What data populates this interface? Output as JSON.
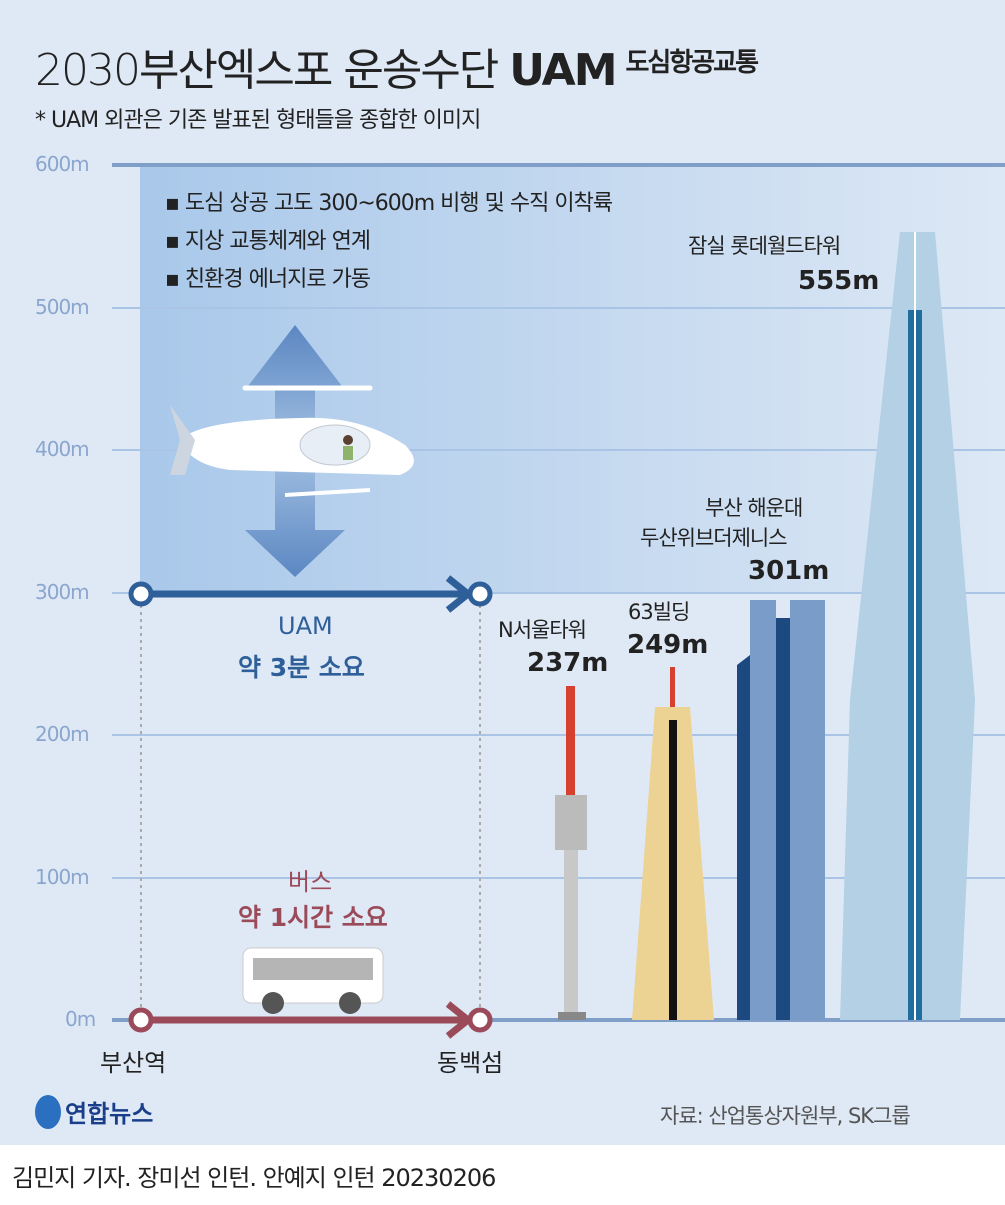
{
  "title": {
    "main": "2030부산엑스포 운송수단 ",
    "bold": "UAM",
    "sub": "도심항공교통"
  },
  "note": "* UAM 외관은 기존 발표된 형태들을 종합한 이미지",
  "axis": [
    "600m",
    "500m",
    "400m",
    "300m",
    "200m",
    "100m",
    "0m"
  ],
  "bullets": [
    "▪ 도심 상공 고도 300~600m 비행 및 수직 이착륙",
    "▪ 지상 교통체계와 연계",
    "▪ 친환경 에너지로 가동"
  ],
  "uam": {
    "label": "UAM",
    "time": "약 3분 소요",
    "color": "#2f5f99",
    "altitude_m": 300
  },
  "bus": {
    "label": "버스",
    "time": "약 1시간 소요",
    "color": "#9b4a5a"
  },
  "stations": {
    "from": "부산역",
    "to": "동백섬"
  },
  "buildings": [
    {
      "name": "N서울타워",
      "height": "237m",
      "height_m": 237
    },
    {
      "name": "63빌딩",
      "height": "249m",
      "height_m": 249
    },
    {
      "name_line1": "부산 해운대",
      "name_line2": "두산위브더제니스",
      "height": "301m",
      "height_m": 301
    },
    {
      "name": "잠실 롯데월드타워",
      "height": "555m",
      "height_m": 555
    }
  ],
  "logo": "연합뉴스",
  "source": "자료: 산업통상자원부, SK그룹",
  "credit": "김민지 기자. 장미선 인턴. 안예지 인턴  20230206"
}
